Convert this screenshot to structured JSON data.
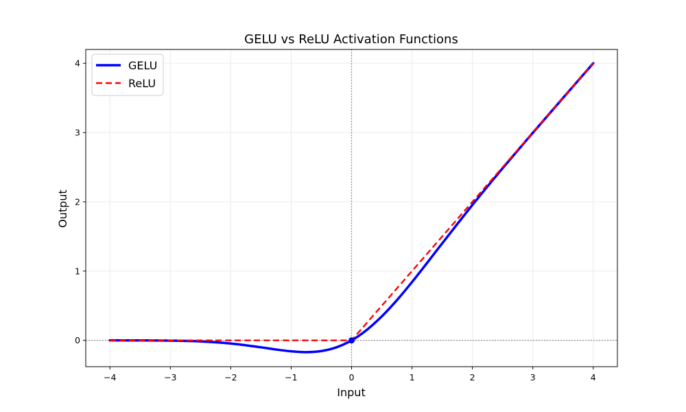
{
  "chart_data": {
    "type": "line",
    "title": "GELU vs ReLU Activation Functions",
    "xlabel": "Input",
    "ylabel": "Output",
    "xlim": [
      -4.4,
      4.4
    ],
    "ylim": [
      -0.38,
      4.2
    ],
    "xticks": [
      -4,
      -3,
      -2,
      -1,
      0,
      1,
      2,
      3,
      4
    ],
    "xtick_labels": [
      "−4",
      "−3",
      "−2",
      "−1",
      "0",
      "1",
      "2",
      "3",
      "4"
    ],
    "yticks": [
      0,
      1,
      2,
      3,
      4
    ],
    "ytick_labels": [
      "0",
      "1",
      "2",
      "3",
      "4"
    ],
    "grid": true,
    "legend_position": "top-left",
    "reference_lines": [
      {
        "orientation": "horizontal",
        "value": 0,
        "style": "dotted",
        "color": "#999999"
      },
      {
        "orientation": "vertical",
        "value": 0,
        "style": "dotted",
        "color": "#999999"
      }
    ],
    "highlight_point": {
      "x": 0,
      "y": 0,
      "color": "#0000ff"
    },
    "series": [
      {
        "name": "GELU",
        "color": "#0000ff",
        "style": "solid",
        "x": [
          -4.0,
          -3.5,
          -3.0,
          -2.5,
          -2.0,
          -1.5,
          -1.25,
          -1.0,
          -0.75,
          -0.5,
          -0.25,
          0.0,
          0.25,
          0.5,
          0.75,
          1.0,
          1.25,
          1.5,
          2.0,
          2.5,
          3.0,
          3.5,
          4.0
        ],
        "y": [
          -0.0001,
          -0.0008,
          -0.004,
          -0.0155,
          -0.0455,
          -0.1002,
          -0.132,
          -0.1587,
          -0.17,
          -0.1543,
          -0.1003,
          0.0,
          0.1497,
          0.3457,
          0.58,
          0.8413,
          1.118,
          1.3998,
          1.9545,
          2.4845,
          2.996,
          3.4992,
          3.9999
        ]
      },
      {
        "name": "ReLU",
        "color": "#ff0000",
        "style": "dashed",
        "x": [
          -4.0,
          0.0,
          4.0
        ],
        "y": [
          0.0,
          0.0,
          4.0
        ]
      }
    ]
  }
}
